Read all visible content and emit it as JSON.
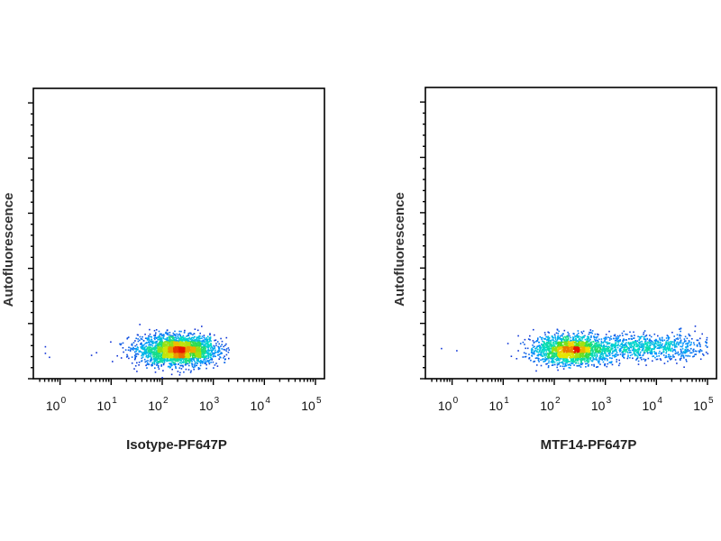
{
  "chart_data": [
    {
      "type": "scatter",
      "density": true,
      "xlabel": "Isotype-PF647P",
      "ylabel": "Autofluorescence",
      "xscale": "log",
      "xlim": [
        0.3,
        150000
      ],
      "x_ticks": [
        {
          "base": "10",
          "exp": "0",
          "value": 1
        },
        {
          "base": "10",
          "exp": "1",
          "value": 10
        },
        {
          "base": "10",
          "exp": "2",
          "value": 100
        },
        {
          "base": "10",
          "exp": "3",
          "value": 1000
        },
        {
          "base": "10",
          "exp": "4",
          "value": 10000
        },
        {
          "base": "10",
          "exp": "5",
          "value": 100000
        }
      ],
      "clusters": [
        {
          "center_x": 200,
          "spread_x_decades": 0.38,
          "center_y": 0.1,
          "spread_y": 0.025,
          "x_range": [
            8,
            2000
          ],
          "weight": 1.0
        }
      ],
      "outliers_x": [
        0.5,
        0.6,
        0.5,
        4,
        5
      ],
      "grid": false
    },
    {
      "type": "scatter",
      "density": true,
      "xlabel": "MTF14-PF647P",
      "ylabel": "Autofluorescence",
      "xscale": "log",
      "xlim": [
        0.3,
        150000
      ],
      "x_ticks": [
        {
          "base": "10",
          "exp": "0",
          "value": 1
        },
        {
          "base": "10",
          "exp": "1",
          "value": 10
        },
        {
          "base": "10",
          "exp": "2",
          "value": 100
        },
        {
          "base": "10",
          "exp": "3",
          "value": 1000
        },
        {
          "base": "10",
          "exp": "4",
          "value": 10000
        },
        {
          "base": "10",
          "exp": "5",
          "value": 100000
        }
      ],
      "clusters": [
        {
          "center_x": 200,
          "spread_x_decades": 0.35,
          "center_y": 0.1,
          "spread_y": 0.025,
          "x_range": [
            12,
            3000
          ],
          "weight": 0.65
        },
        {
          "center_x": 5000,
          "spread_x_decades": 0.75,
          "center_y": 0.11,
          "spread_y": 0.022,
          "x_range": [
            300,
            100000
          ],
          "weight": 0.35
        }
      ],
      "outliers_x": [
        0.6,
        1.2,
        12,
        14
      ],
      "grid": false
    }
  ]
}
